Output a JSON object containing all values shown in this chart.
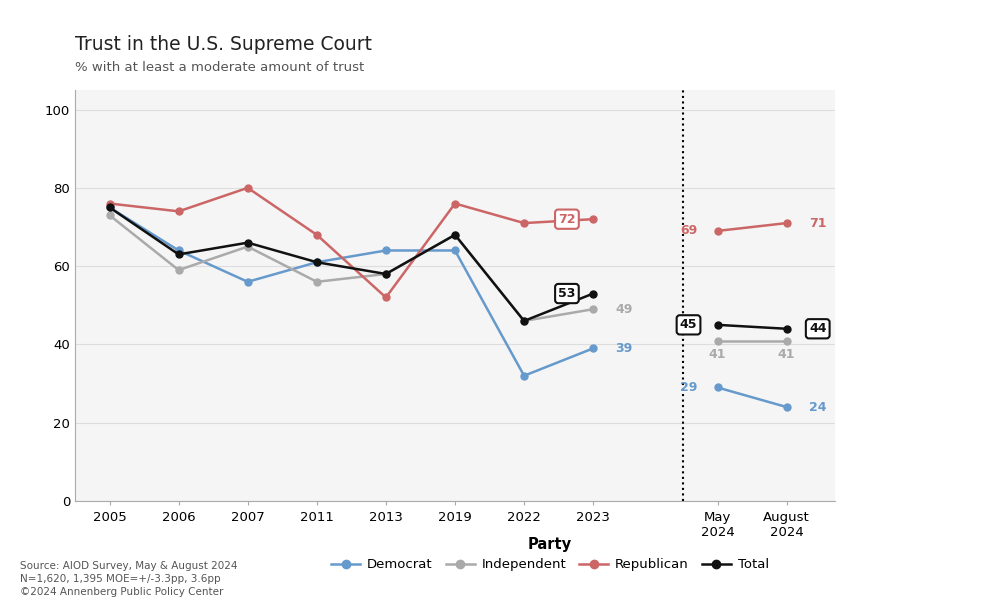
{
  "title": "Trust in the U.S. Supreme Court",
  "subtitle": "% with at least a moderate amount of trust",
  "source_text": "Source: AIOD Survey, May & August 2024\nN=1,620, 1,395 MOE=+/-3.3pp, 3.6pp\n©2024 Annenberg Public Policy Center",
  "democrat": [
    75,
    64,
    56,
    61,
    64,
    64,
    32,
    39,
    29,
    24
  ],
  "independent": [
    73,
    59,
    65,
    56,
    58,
    68,
    46,
    49,
    41,
    41
  ],
  "republican": [
    76,
    74,
    80,
    68,
    52,
    76,
    71,
    72,
    69,
    71
  ],
  "total": [
    75,
    63,
    66,
    61,
    58,
    68,
    46,
    53,
    45,
    44
  ],
  "democrat_color": "#6699CC",
  "independent_color": "#AAAAAA",
  "republican_color": "#CC6666",
  "total_color": "#111111",
  "bg_color": "#F5F5F5",
  "grid_color": "#DDDDDD",
  "ylim": [
    0,
    105
  ],
  "yticks": [
    0,
    20,
    40,
    60,
    80,
    100
  ]
}
